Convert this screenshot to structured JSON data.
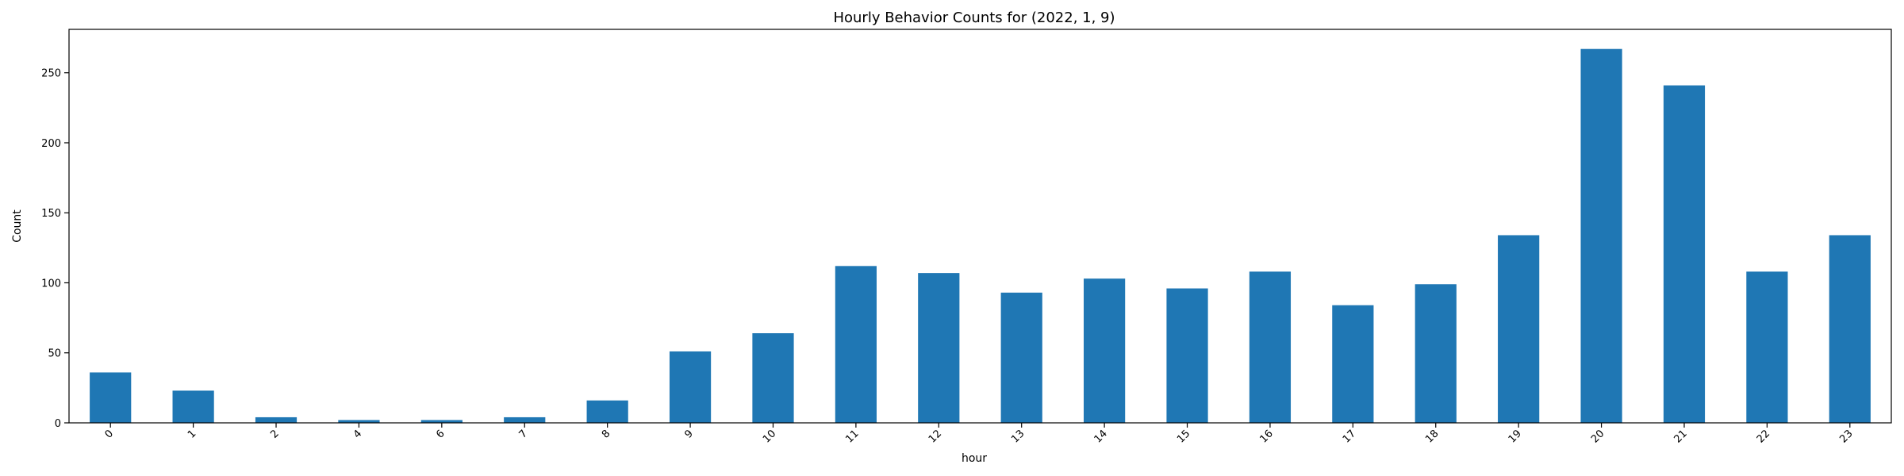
{
  "chart_data": {
    "type": "bar",
    "title": "Hourly Behavior Counts for (2022, 1, 9)",
    "xlabel": "hour",
    "ylabel": "Count",
    "categories": [
      "0",
      "1",
      "2",
      "4",
      "6",
      "7",
      "8",
      "9",
      "10",
      "11",
      "12",
      "13",
      "14",
      "15",
      "16",
      "17",
      "18",
      "19",
      "20",
      "21",
      "22",
      "23"
    ],
    "values": [
      36,
      23,
      4,
      2,
      2,
      4,
      16,
      51,
      64,
      112,
      107,
      93,
      103,
      96,
      108,
      84,
      99,
      134,
      267,
      241,
      108,
      134
    ],
    "ylim": [
      0,
      281
    ],
    "yticks": [
      0,
      50,
      100,
      150,
      200,
      250
    ],
    "grid": false,
    "legend": "none",
    "bar_color": "#1f77b4"
  }
}
